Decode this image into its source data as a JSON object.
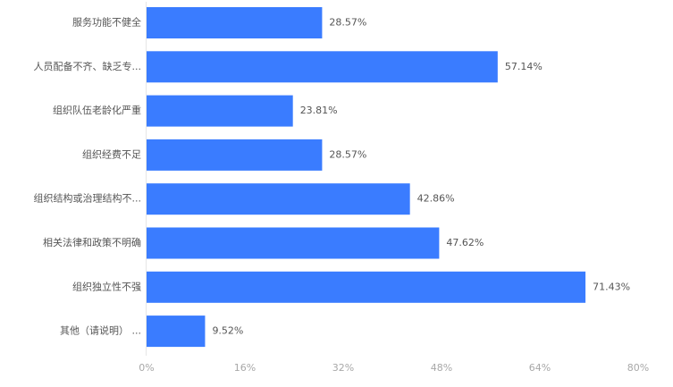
{
  "colors": {
    "bar": "#3a7cff",
    "axis_line": "#e6e6e6",
    "category_text": "#555555",
    "data_label_text": "#555555",
    "tick_text": "#a8a8a8"
  },
  "chart_data": {
    "type": "bar",
    "orientation": "horizontal",
    "categories": [
      "服务功能不健全",
      "人员配备不齐、缺乏专...",
      "组织队伍老龄化严重",
      "组织经费不足",
      "组织结构或治理结构不...",
      "相关法律和政策不明确",
      "组织独立性不强",
      "其他（请说明）   ..."
    ],
    "values": [
      28.57,
      57.14,
      23.81,
      28.57,
      42.86,
      47.62,
      71.43,
      9.52
    ],
    "data_labels": [
      "28.57%",
      "57.14%",
      "23.81%",
      "28.57%",
      "42.86%",
      "47.62%",
      "71.43%",
      "9.52%"
    ],
    "x_ticks": [
      0,
      16,
      32,
      48,
      64,
      80
    ],
    "x_tick_labels": [
      "0%",
      "16%",
      "32%",
      "48%",
      "64%",
      "80%"
    ],
    "xlim": [
      0,
      80
    ],
    "title": "",
    "xlabel": "",
    "ylabel": "",
    "grid": false,
    "legend": "none"
  }
}
